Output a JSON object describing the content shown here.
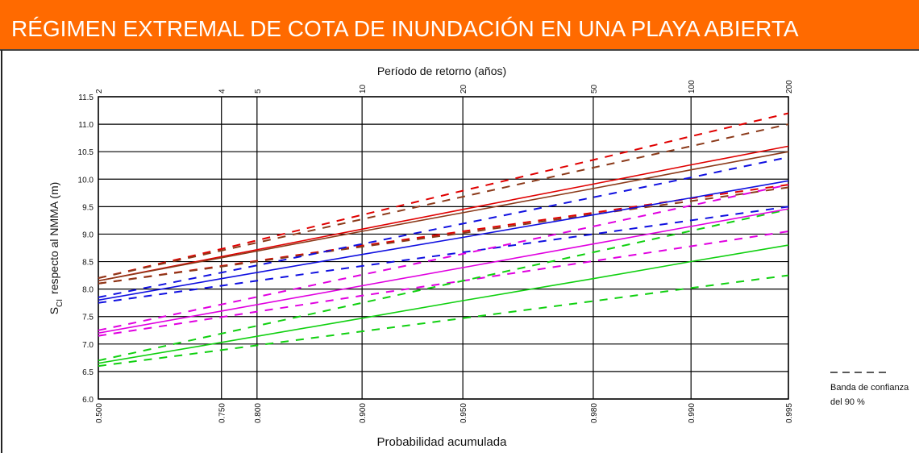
{
  "chart_data": {
    "type": "line",
    "title": "RÉGIMEN EXTREMAL DE COTA DE INUNDACIÓN EN UNA PLAYA ABIERTA",
    "x2label": "Período de retorno (años)",
    "xlabel": "Probabilidad acumulada",
    "ylabel_symbol": "S",
    "ylabel_subscript": "CI",
    "ylabel": "respecto al NMMA (m)",
    "legend_lines": [
      "Banda de confianza",
      "del 90 %"
    ],
    "xscale": "gumbel",
    "x2scale": "return_period",
    "grid": true,
    "xlim": [
      0.5,
      0.995
    ],
    "xticks": [
      {
        "value": 0.5,
        "label": "0.500"
      },
      {
        "value": 0.75,
        "label": "0.750"
      },
      {
        "value": 0.8,
        "label": "0.800"
      },
      {
        "value": 0.9,
        "label": "0.900"
      },
      {
        "value": 0.95,
        "label": "0.950"
      },
      {
        "value": 0.98,
        "label": "0.980"
      },
      {
        "value": 0.99,
        "label": "0.990"
      },
      {
        "value": 0.995,
        "label": "0.995"
      }
    ],
    "x2ticks": [
      2,
      4,
      5,
      10,
      20,
      50,
      100,
      200
    ],
    "ylim": [
      6,
      11.5
    ],
    "yticks": [
      {
        "value": 6,
        "label": "6.0"
      },
      6.5,
      {
        "value": 7,
        "label": "7.0"
      },
      7.5,
      {
        "value": 8,
        "label": "8.0"
      },
      8.5,
      {
        "value": 9,
        "label": "9.0"
      },
      9.5,
      {
        "value": 10,
        "label": "10.0"
      },
      10.5,
      {
        "value": 11,
        "label": "11.0"
      },
      11.5
    ],
    "x": [
      0.5,
      0.75,
      0.9,
      0.95,
      0.98,
      0.99,
      0.995
    ],
    "series": [
      {
        "color": "#e00000",
        "dashed": true,
        "values": [
          8.2,
          8.73,
          9.35,
          9.79,
          10.35,
          10.78,
          11.2
        ]
      },
      {
        "color": "#e00000",
        "dashed": true,
        "values": [
          8.1,
          8.42,
          8.79,
          9.05,
          9.39,
          9.65,
          9.9
        ]
      },
      {
        "color": "#8b3a1a",
        "dashed": true,
        "values": [
          8.2,
          8.7,
          9.27,
          9.68,
          10.21,
          10.6,
          11.0
        ]
      },
      {
        "color": "#8b3a1a",
        "dashed": true,
        "values": [
          8.1,
          8.41,
          8.77,
          9.02,
          9.36,
          9.6,
          9.85
        ]
      },
      {
        "color": "#1010e0",
        "dashed": true,
        "values": [
          7.85,
          8.3,
          8.82,
          9.19,
          9.67,
          10.03,
          10.4
        ]
      },
      {
        "color": "#1010e0",
        "dashed": true,
        "values": [
          7.75,
          8.06,
          8.42,
          8.67,
          9.0,
          9.25,
          9.5
        ]
      },
      {
        "color": "#e000e0",
        "dashed": true,
        "values": [
          7.25,
          7.72,
          8.26,
          8.64,
          9.14,
          9.52,
          9.9
        ]
      },
      {
        "color": "#e000e0",
        "dashed": true,
        "values": [
          7.15,
          7.49,
          7.88,
          8.15,
          8.51,
          8.78,
          9.05
        ]
      },
      {
        "color": "#10d010",
        "dashed": true,
        "values": [
          6.7,
          7.19,
          7.75,
          8.15,
          8.67,
          9.06,
          9.45
        ]
      },
      {
        "color": "#10d010",
        "dashed": true,
        "values": [
          6.6,
          6.89,
          7.23,
          7.47,
          7.78,
          8.02,
          8.25
        ]
      },
      {
        "color": "#e00000",
        "dashed": false,
        "values": [
          8.15,
          8.59,
          9.09,
          9.45,
          9.91,
          10.26,
          10.6
        ]
      },
      {
        "color": "#8b3a1a",
        "dashed": false,
        "values": [
          8.15,
          8.57,
          9.05,
          9.39,
          9.83,
          10.17,
          10.5
        ]
      },
      {
        "color": "#1010e0",
        "dashed": false,
        "values": [
          7.8,
          8.19,
          8.63,
          8.94,
          9.35,
          9.66,
          9.97
        ]
      },
      {
        "color": "#e000e0",
        "dashed": false,
        "values": [
          7.2,
          7.6,
          8.06,
          8.39,
          8.82,
          9.14,
          9.46
        ]
      },
      {
        "color": "#10d010",
        "dashed": false,
        "values": [
          6.65,
          7.03,
          7.47,
          7.79,
          8.19,
          8.5,
          8.8
        ]
      }
    ]
  }
}
